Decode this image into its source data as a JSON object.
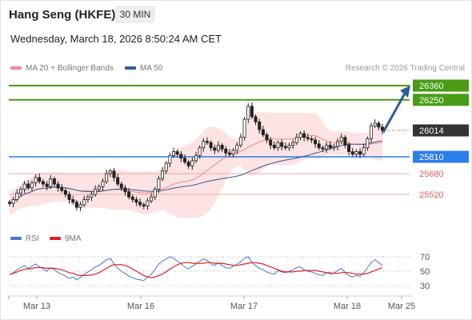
{
  "header": {
    "instrument": "Hang Seng (HKFE)",
    "timeframe": "30 MIN",
    "datetime": "Wednesday, March 18, 2026 8:50:24 AM CET",
    "credit": "Research © 2026 Trading Central"
  },
  "legend": {
    "bollinger": {
      "label": "MA 20 + Bollinger Bands",
      "color": "#f08a8a"
    },
    "ma50": {
      "label": "MA 50",
      "color": "#2f5d96"
    }
  },
  "rsi_legend": {
    "rsi": {
      "label": "RSI",
      "color": "#4a74d0"
    },
    "ma9": {
      "label": "9MA",
      "color": "#dd2222"
    }
  },
  "chart_data": [
    {
      "type": "candlestick",
      "title": "",
      "x_tick_labels": [
        "Mar 13",
        "Mar 16",
        "Mar 17",
        "Mar 18",
        "Mar 25"
      ],
      "levels": [
        {
          "value": 26360,
          "label": "26360",
          "kind": "resistance",
          "color": "#4a9b16"
        },
        {
          "value": 26250,
          "label": "26250",
          "kind": "resistance",
          "color": "#4a9b16"
        },
        {
          "value": 26014,
          "label": "26014",
          "kind": "last",
          "color": "#333333"
        },
        {
          "value": 25810,
          "label": "25810",
          "kind": "pivot",
          "color": "#2b7de9"
        },
        {
          "value": 25680,
          "label": "25680",
          "kind": "support",
          "color": "#e85c5c"
        },
        {
          "value": 25520,
          "label": "25520",
          "kind": "support",
          "color": "#e85c5c"
        }
      ],
      "forecast_arrow": {
        "from": 26000,
        "to": 26360,
        "color": "#2f5d96"
      },
      "closes": [
        25450,
        25480,
        25530,
        25560,
        25600,
        25570,
        25610,
        25650,
        25620,
        25600,
        25580,
        25640,
        25600,
        25570,
        25550,
        25520,
        25480,
        25460,
        25420,
        25440,
        25480,
        25500,
        25520,
        25560,
        25580,
        25620,
        25680,
        25700,
        25650,
        25600,
        25570,
        25540,
        25500,
        25480,
        25460,
        25440,
        25430,
        25470,
        25500,
        25560,
        25640,
        25700,
        25760,
        25820,
        25850,
        25830,
        25800,
        25770,
        25740,
        25780,
        25820,
        25880,
        25930,
        25920,
        25880,
        25860,
        25900,
        25870,
        25840,
        25830,
        25860,
        25900,
        25960,
        26100,
        26200,
        26120,
        26080,
        26020,
        25980,
        25940,
        25900,
        25880,
        25920,
        25890,
        25880,
        25900,
        25920,
        25960,
        25990,
        25960,
        25950,
        25940,
        25910,
        25880,
        25870,
        25900,
        25880,
        25890,
        25930,
        25960,
        25900,
        25850,
        25830,
        25850,
        25830,
        25880,
        25950,
        26050,
        26070,
        26040,
        26014
      ],
      "x_range": [
        "Mar 12",
        "Mar 25"
      ],
      "y_range": [
        25400,
        26400
      ]
    },
    {
      "type": "line",
      "title": "",
      "series": [
        {
          "name": "RSI"
        },
        {
          "name": "9MA"
        }
      ],
      "y_tick_labels": [
        "70",
        "50",
        "30"
      ],
      "y_range": [
        20,
        80
      ],
      "rsi": [
        45,
        48,
        52,
        55,
        58,
        54,
        57,
        60,
        56,
        53,
        50,
        55,
        52,
        48,
        46,
        43,
        40,
        42,
        38,
        41,
        46,
        49,
        52,
        56,
        58,
        62,
        66,
        68,
        60,
        54,
        50,
        47,
        43,
        41,
        39,
        38,
        37,
        42,
        46,
        52,
        60,
        64,
        67,
        70,
        68,
        64,
        60,
        56,
        53,
        57,
        60,
        64,
        67,
        65,
        60,
        58,
        62,
        58,
        55,
        54,
        57,
        60,
        63,
        68,
        70,
        62,
        58,
        54,
        52,
        49,
        47,
        46,
        51,
        49,
        48,
        50,
        52,
        55,
        56,
        52,
        50,
        49,
        47,
        45,
        44,
        48,
        46,
        47,
        51,
        54,
        48,
        44,
        42,
        44,
        43,
        48,
        55,
        62,
        66,
        62,
        58
      ],
      "ma9": [
        46,
        47,
        49,
        51,
        53,
        53,
        54,
        55,
        55,
        55,
        54,
        54,
        54,
        53,
        52,
        50,
        48,
        47,
        45,
        44,
        44,
        44,
        45,
        46,
        48,
        51,
        54,
        57,
        59,
        59,
        59,
        58,
        56,
        53,
        50,
        47,
        44,
        42,
        41,
        42,
        44,
        46,
        49,
        53,
        56,
        59,
        61,
        62,
        62,
        61,
        61,
        61,
        61,
        62,
        62,
        61,
        61,
        61,
        60,
        59,
        58,
        58,
        59,
        60,
        61,
        62,
        62,
        61,
        60,
        58,
        56,
        54,
        52,
        50,
        49,
        49,
        49,
        50,
        50,
        51,
        51,
        51,
        51,
        50,
        49,
        48,
        48,
        47,
        47,
        48,
        48,
        48,
        47,
        46,
        46,
        46,
        47,
        49,
        51,
        53,
        55
      ]
    }
  ]
}
